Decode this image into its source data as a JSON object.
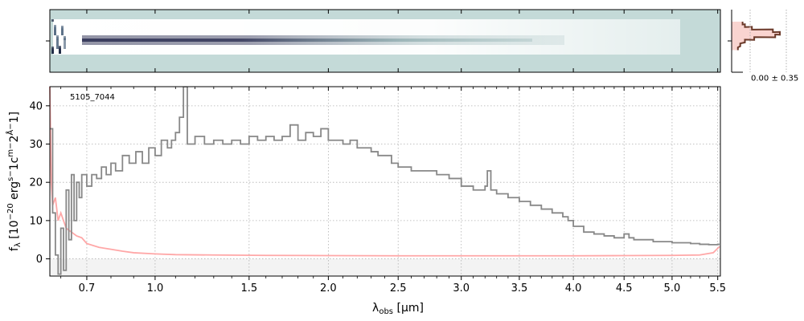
{
  "figure": {
    "object_id": "5105_7044",
    "side_annotation": "0.00 ± 0.35"
  },
  "colors": {
    "flux": "#888888",
    "error": "#ff9d9d",
    "error_fill": "#f7c9c4",
    "profile": "#6b3a2a",
    "grid": "#b0b0b0",
    "spec2d_background": "#c4dad8",
    "spec2d_trace": "#3a3d5e"
  },
  "chart_data": [
    {
      "type": "heatmap",
      "panel": "2d-spectrum",
      "description": "rectified 2D spectrum, trace centered on row 0",
      "x_ticks": [
        0.7,
        1.0,
        1.5,
        2.0,
        2.5,
        3.0,
        3.5,
        4.0,
        4.5,
        5.0,
        5.5
      ],
      "y_ticks": [
        0
      ]
    },
    {
      "type": "line",
      "panel": "spatial-profile",
      "x_ticks_label": "0.00 ± 0.35",
      "profile_rows": [
        [
          -30,
          0.2
        ],
        [
          -26,
          0.25
        ],
        [
          -22,
          0.4
        ],
        [
          -18,
          0.85
        ],
        [
          -14,
          1.0
        ],
        [
          -10,
          0.9
        ],
        [
          -6,
          0.45
        ],
        [
          -2,
          0.25
        ],
        [
          4,
          0.15
        ],
        [
          10,
          0.1
        ]
      ]
    },
    {
      "type": "line",
      "panel": "1d-spectrum",
      "xlabel": "λobs [μm]",
      "ylabel": "fλ [10−20 ergs−1cm−2Å−1]",
      "x_scale": "power-0.5",
      "xlim": [
        0.56,
        5.53
      ],
      "ylim": [
        -4.5,
        45
      ],
      "x_ticks": [
        0.7,
        1.0,
        1.5,
        2.0,
        2.5,
        3.0,
        3.5,
        4.0,
        4.5,
        5.0,
        5.5
      ],
      "x_tick_labels": [
        "0.7",
        "1.0",
        "1.5",
        "2.0",
        "2.5",
        "3.0",
        "3.5",
        "4.0",
        "4.5",
        "5.0",
        "5.5"
      ],
      "y_ticks": [
        0,
        10,
        20,
        30,
        40
      ],
      "y_tick_labels": [
        "0",
        "10",
        "20",
        "30",
        "40"
      ],
      "grid": true,
      "series": [
        {
          "role": "flux",
          "points": [
            [
              0.56,
              34
            ],
            [
              0.57,
              12
            ],
            [
              0.58,
              1
            ],
            [
              0.59,
              -4
            ],
            [
              0.6,
              8
            ],
            [
              0.61,
              -3
            ],
            [
              0.62,
              18
            ],
            [
              0.63,
              5
            ],
            [
              0.64,
              22
            ],
            [
              0.65,
              10
            ],
            [
              0.66,
              20
            ],
            [
              0.67,
              16
            ],
            [
              0.68,
              22
            ],
            [
              0.7,
              19
            ],
            [
              0.72,
              22
            ],
            [
              0.74,
              21
            ],
            [
              0.76,
              24
            ],
            [
              0.78,
              22
            ],
            [
              0.8,
              25
            ],
            [
              0.82,
              23
            ],
            [
              0.85,
              27
            ],
            [
              0.88,
              25
            ],
            [
              0.91,
              28
            ],
            [
              0.94,
              25
            ],
            [
              0.97,
              29
            ],
            [
              1.0,
              27
            ],
            [
              1.03,
              31
            ],
            [
              1.06,
              29
            ],
            [
              1.08,
              31
            ],
            [
              1.1,
              33
            ],
            [
              1.12,
              37
            ],
            [
              1.14,
              45
            ],
            [
              1.16,
              30
            ],
            [
              1.2,
              32
            ],
            [
              1.25,
              30
            ],
            [
              1.3,
              31
            ],
            [
              1.35,
              30
            ],
            [
              1.4,
              31
            ],
            [
              1.45,
              30
            ],
            [
              1.5,
              32
            ],
            [
              1.55,
              31
            ],
            [
              1.6,
              32
            ],
            [
              1.65,
              31
            ],
            [
              1.7,
              32
            ],
            [
              1.75,
              35
            ],
            [
              1.8,
              31
            ],
            [
              1.85,
              33
            ],
            [
              1.9,
              32
            ],
            [
              1.95,
              34
            ],
            [
              2.0,
              31
            ],
            [
              2.05,
              31
            ],
            [
              2.1,
              30
            ],
            [
              2.15,
              31
            ],
            [
              2.2,
              29
            ],
            [
              2.25,
              29
            ],
            [
              2.3,
              28
            ],
            [
              2.35,
              27
            ],
            [
              2.4,
              27
            ],
            [
              2.45,
              25
            ],
            [
              2.5,
              24
            ],
            [
              2.55,
              24
            ],
            [
              2.6,
              23
            ],
            [
              2.7,
              23
            ],
            [
              2.8,
              22
            ],
            [
              2.9,
              21
            ],
            [
              3.0,
              19
            ],
            [
              3.1,
              18
            ],
            [
              3.15,
              18
            ],
            [
              3.2,
              19
            ],
            [
              3.22,
              23
            ],
            [
              3.25,
              18
            ],
            [
              3.3,
              17
            ],
            [
              3.4,
              16
            ],
            [
              3.5,
              15
            ],
            [
              3.6,
              14
            ],
            [
              3.7,
              13
            ],
            [
              3.8,
              12
            ],
            [
              3.9,
              11
            ],
            [
              3.95,
              10
            ],
            [
              4.0,
              8.5
            ],
            [
              4.1,
              7
            ],
            [
              4.2,
              6.5
            ],
            [
              4.3,
              6
            ],
            [
              4.4,
              5.5
            ],
            [
              4.5,
              6.5
            ],
            [
              4.55,
              5.5
            ],
            [
              4.6,
              5
            ],
            [
              4.7,
              5
            ],
            [
              4.8,
              4.5
            ],
            [
              4.9,
              4.5
            ],
            [
              5.0,
              4.2
            ],
            [
              5.1,
              4.2
            ],
            [
              5.2,
              4
            ],
            [
              5.3,
              3.8
            ],
            [
              5.4,
              3.7
            ],
            [
              5.5,
              3.8
            ]
          ]
        },
        {
          "role": "error",
          "points": [
            [
              0.56,
              45
            ],
            [
              0.565,
              20
            ],
            [
              0.57,
              14
            ],
            [
              0.58,
              16
            ],
            [
              0.59,
              10
            ],
            [
              0.6,
              12
            ],
            [
              0.62,
              8
            ],
            [
              0.64,
              7
            ],
            [
              0.66,
              6
            ],
            [
              0.68,
              5.5
            ],
            [
              0.7,
              4
            ],
            [
              0.75,
              3
            ],
            [
              0.8,
              2.5
            ],
            [
              0.85,
              2
            ],
            [
              0.9,
              1.6
            ],
            [
              1.0,
              1.3
            ],
            [
              1.1,
              1.1
            ],
            [
              1.3,
              1
            ],
            [
              1.6,
              0.9
            ],
            [
              2.0,
              0.85
            ],
            [
              2.5,
              0.8
            ],
            [
              3.0,
              0.8
            ],
            [
              3.5,
              0.8
            ],
            [
              4.0,
              0.8
            ],
            [
              4.5,
              0.85
            ],
            [
              5.0,
              0.9
            ],
            [
              5.3,
              1.0
            ],
            [
              5.45,
              1.6
            ],
            [
              5.52,
              3.2
            ]
          ]
        }
      ]
    }
  ]
}
